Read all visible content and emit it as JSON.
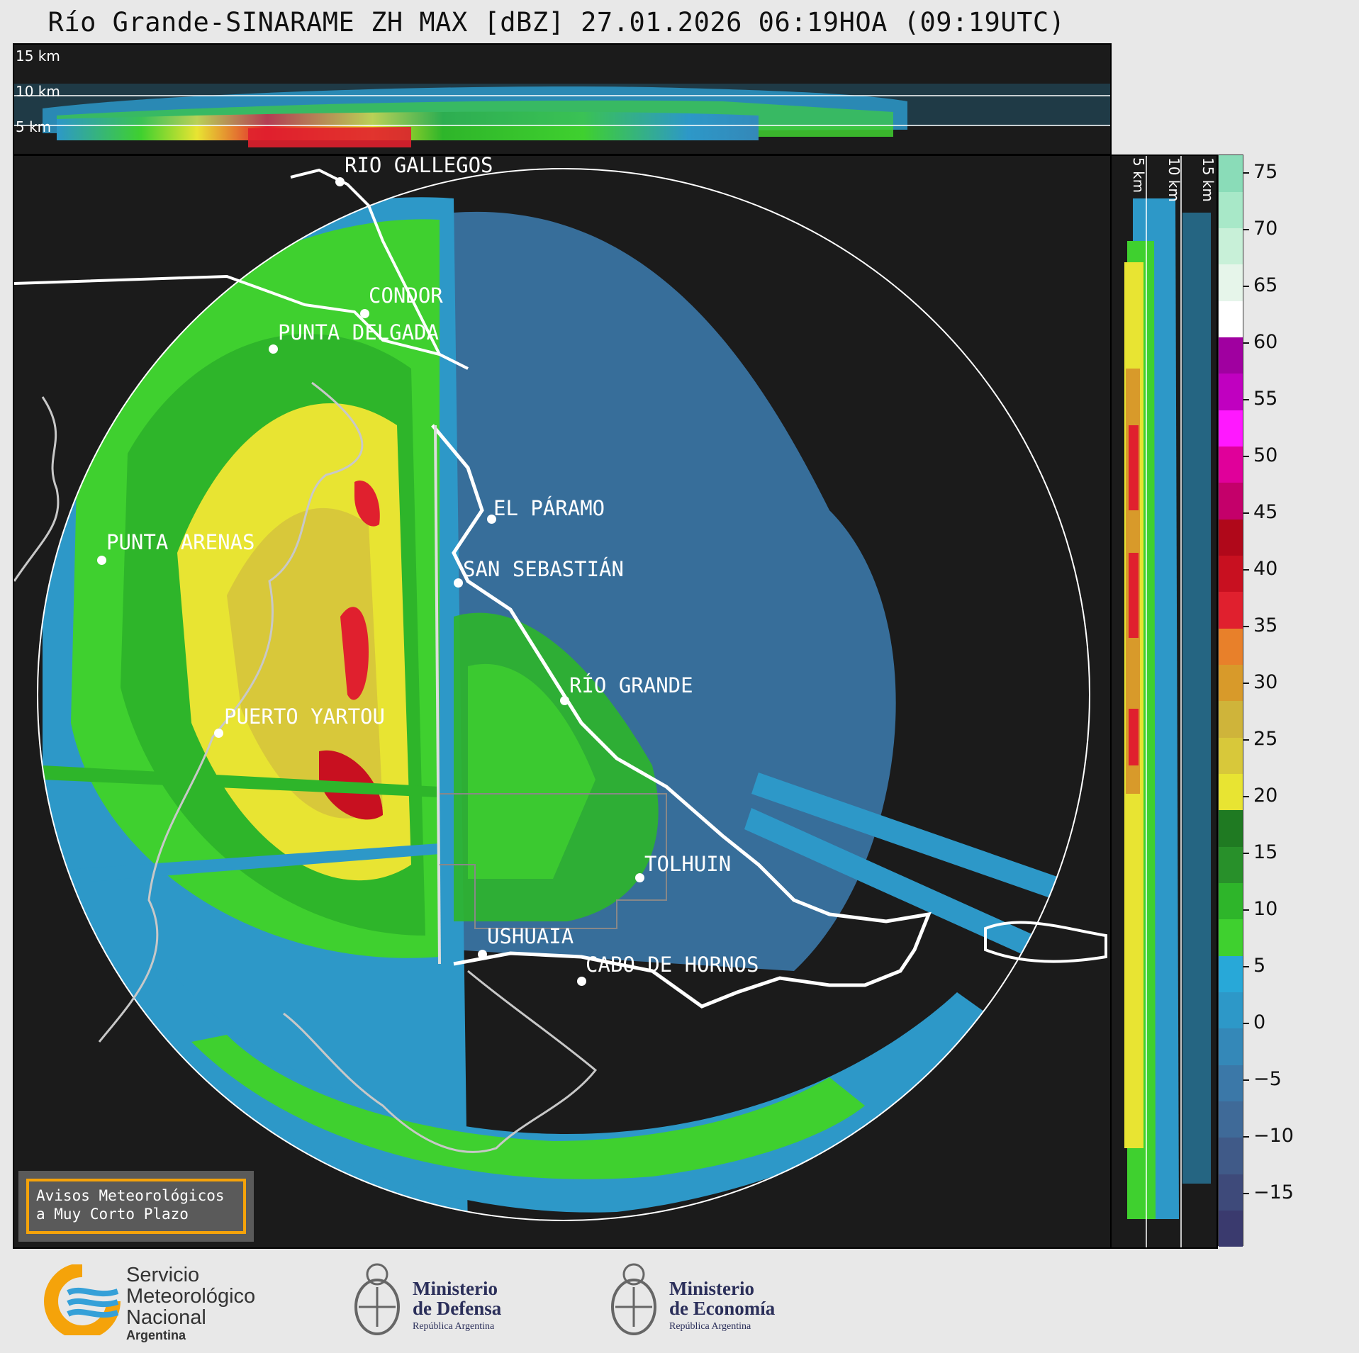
{
  "title": "Río Grande-SINARAME ZH MAX [dBZ] 27.01.2026 06:19HOA (09:19UTC)",
  "top_panel": {
    "height_labels": [
      "15 km",
      "10 km",
      "5 km"
    ]
  },
  "side_panel": {
    "height_labels": [
      "5 km",
      "10 km",
      "15 km"
    ]
  },
  "map": {
    "cities": [
      {
        "name": "RÍO GALLEGOS"
      },
      {
        "name": "CONDOR"
      },
      {
        "name": "PUNTA DELGADA"
      },
      {
        "name": "PUNTA ARENAS"
      },
      {
        "name": "EL PÁRAMO"
      },
      {
        "name": "SAN SEBASTIÁN"
      },
      {
        "name": "RÍO GRANDE"
      },
      {
        "name": "PUERTO YARTOU"
      },
      {
        "name": "TOLHUIN"
      },
      {
        "name": "USHUAIA"
      },
      {
        "name": "CABO DE HORNOS"
      }
    ]
  },
  "avisos": {
    "line1": "Avisos Meteorológicos",
    "line2": "a Muy Corto Plazo"
  },
  "colorbar": {
    "unit": "dBZ",
    "ticks": [
      "75",
      "70",
      "65",
      "60",
      "55",
      "50",
      "45",
      "40",
      "35",
      "30",
      "25",
      "20",
      "15",
      "10",
      "5",
      "0",
      "−5",
      "−10",
      "−15"
    ],
    "colors": [
      "#3a3a6e",
      "#3e4a7a",
      "#405a88",
      "#3f6a98",
      "#3b78a8",
      "#3488b8",
      "#2d98c8",
      "#28a8d8",
      "#3fd02f",
      "#2eb52a",
      "#28902a",
      "#1f7a22",
      "#e8e432",
      "#d8c83a",
      "#cfb43a",
      "#d89a2a",
      "#e8802a",
      "#e0202e",
      "#c81020",
      "#b0081a",
      "#c4006a",
      "#e0009a",
      "#ff18ff",
      "#c000c0",
      "#a000a0",
      "#ffffff",
      "#e6f5ea",
      "#c8f0d8",
      "#a8e8c8",
      "#8adcb8"
    ]
  },
  "footer": {
    "smn": {
      "line1": "Servicio",
      "line2": "Meteorológico",
      "line3": "Nacional",
      "line4": "Argentina"
    },
    "defensa": {
      "line1": "Ministerio",
      "line2": "de Defensa",
      "line3": "República Argentina"
    },
    "economia": {
      "line1": "Ministerio",
      "line2": "de Economía",
      "line3": "República Argentina"
    }
  }
}
